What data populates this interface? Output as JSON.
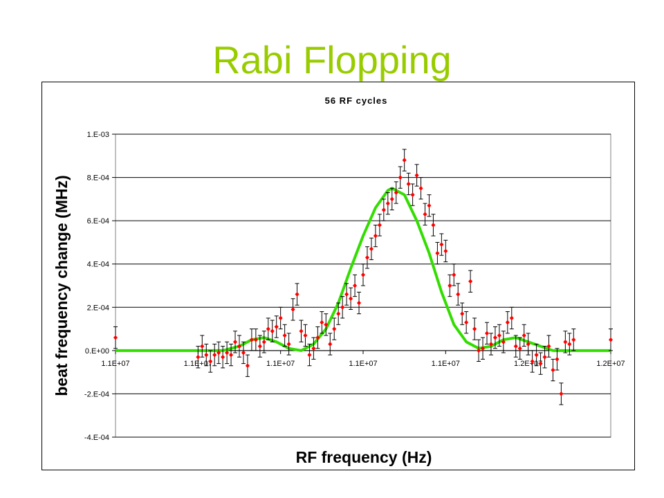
{
  "slide": {
    "title": "Rabi Flopping"
  },
  "chart_data": {
    "type": "scatter",
    "title": "56 RF cycles",
    "xlabel": "RF frequency (Hz)",
    "ylabel": "beat frequency change (MHz)",
    "xlim": [
      0,
      6
    ],
    "ylim": [
      -0.0004,
      0.001
    ],
    "grid": true,
    "legend": "none",
    "x_tick_labels": [
      "1.1E+07",
      "1.1E+07",
      "1.1E+07",
      "1.1E+07",
      "1.1E+07",
      "1.2E+07",
      "1.2E+07"
    ],
    "y_ticks": [
      -0.0004,
      -0.0002,
      0.0,
      0.0002,
      0.0004,
      0.0006,
      0.0008,
      0.001
    ],
    "y_tick_labels": [
      "-4.E-04",
      "-2.E-04",
      "0.E+00",
      "2.E-04",
      "4.E-04",
      "6.E-04",
      "8.E-04",
      "1.E-03"
    ],
    "colors": {
      "points": "#ff0000",
      "fit": "#33dd00",
      "grid": "#000000",
      "title": "#99cc00"
    },
    "series": [
      {
        "type": "scatter_errorbar",
        "error": 5e-05,
        "points": [
          [
            0.0,
            6e-05
          ],
          [
            1.0,
            -3e-05
          ],
          [
            1.05,
            2e-05
          ],
          [
            1.1,
            -2e-05
          ],
          [
            1.15,
            -5e-05
          ],
          [
            1.2,
            -2e-05
          ],
          [
            1.25,
            -1e-05
          ],
          [
            1.3,
            -3e-05
          ],
          [
            1.35,
            -1e-05
          ],
          [
            1.4,
            -2e-05
          ],
          [
            1.45,
            4e-05
          ],
          [
            1.5,
            2e-05
          ],
          [
            1.55,
            -1e-05
          ],
          [
            1.6,
            -7e-05
          ],
          [
            1.65,
            5e-05
          ],
          [
            1.7,
            5e-05
          ],
          [
            1.75,
            2e-05
          ],
          [
            1.8,
            4e-05
          ],
          [
            1.85,
            0.0001
          ],
          [
            1.9,
            9e-05
          ],
          [
            1.95,
            0.00011
          ],
          [
            2.0,
            0.00015
          ],
          [
            2.05,
            7e-05
          ],
          [
            2.1,
            3e-05
          ],
          [
            2.15,
            0.00019
          ],
          [
            2.2,
            0.00026
          ],
          [
            2.25,
            9e-05
          ],
          [
            2.3,
            7e-05
          ],
          [
            2.35,
            -2e-05
          ],
          [
            2.4,
            1e-05
          ],
          [
            2.45,
            6e-05
          ],
          [
            2.5,
            0.00013
          ],
          [
            2.55,
            0.00012
          ],
          [
            2.6,
            3e-05
          ],
          [
            2.65,
            0.0001
          ],
          [
            2.7,
            0.00017
          ],
          [
            2.75,
            0.0002
          ],
          [
            2.8,
            0.00026
          ],
          [
            2.85,
            0.00024
          ],
          [
            2.9,
            0.0003
          ],
          [
            2.95,
            0.00022
          ],
          [
            3.0,
            0.00035
          ],
          [
            3.05,
            0.00043
          ],
          [
            3.1,
            0.00047
          ],
          [
            3.15,
            0.00053
          ],
          [
            3.2,
            0.00058
          ],
          [
            3.25,
            0.00065
          ],
          [
            3.3,
            0.00068
          ],
          [
            3.35,
            0.0007
          ],
          [
            3.4,
            0.00073
          ],
          [
            3.45,
            0.0008
          ],
          [
            3.5,
            0.00088
          ],
          [
            3.55,
            0.00077
          ],
          [
            3.6,
            0.00072
          ],
          [
            3.65,
            0.00081
          ],
          [
            3.7,
            0.00075
          ],
          [
            3.75,
            0.00063
          ],
          [
            3.8,
            0.00067
          ],
          [
            3.85,
            0.00058
          ],
          [
            3.9,
            0.00045
          ],
          [
            3.95,
            0.00049
          ],
          [
            4.0,
            0.00046
          ],
          [
            4.05,
            0.0003
          ],
          [
            4.1,
            0.00035
          ],
          [
            4.15,
            0.00026
          ],
          [
            4.2,
            0.00017
          ],
          [
            4.25,
            0.00013
          ],
          [
            4.3,
            0.00032
          ],
          [
            4.35,
            0.0001
          ],
          [
            4.4,
            0.0
          ],
          [
            4.45,
            1e-05
          ],
          [
            4.5,
            8e-05
          ],
          [
            4.55,
            3e-05
          ],
          [
            4.6,
            6e-05
          ],
          [
            4.65,
            7e-05
          ],
          [
            4.7,
            4e-05
          ],
          [
            4.75,
            0.00013
          ],
          [
            4.8,
            0.00015
          ],
          [
            4.85,
            2e-05
          ],
          [
            4.9,
            1e-05
          ],
          [
            4.95,
            7e-05
          ],
          [
            5.0,
            3e-05
          ],
          [
            5.05,
            -5e-05
          ],
          [
            5.1,
            -2e-05
          ],
          [
            5.15,
            -6e-05
          ],
          [
            5.2,
            -3e-05
          ],
          [
            5.25,
            2e-05
          ],
          [
            5.3,
            -9e-05
          ],
          [
            5.35,
            -4e-05
          ],
          [
            5.4,
            -0.0002
          ],
          [
            5.45,
            4e-05
          ],
          [
            5.5,
            3e-05
          ],
          [
            5.55,
            5e-05
          ],
          [
            6.0,
            5e-05
          ]
        ]
      },
      {
        "type": "line",
        "points": [
          [
            0.0,
            0.0
          ],
          [
            1.3,
            0.0
          ],
          [
            1.5,
            2e-05
          ],
          [
            1.65,
            5e-05
          ],
          [
            1.8,
            6e-05
          ],
          [
            1.95,
            4e-05
          ],
          [
            2.1,
            1e-05
          ],
          [
            2.25,
            0.0
          ],
          [
            2.4,
            3e-05
          ],
          [
            2.55,
            0.0001
          ],
          [
            2.7,
            0.00022
          ],
          [
            2.85,
            0.00038
          ],
          [
            3.0,
            0.00053
          ],
          [
            3.15,
            0.00066
          ],
          [
            3.3,
            0.00074
          ],
          [
            3.35,
            0.00075
          ],
          [
            3.5,
            0.00072
          ],
          [
            3.65,
            0.0006
          ],
          [
            3.8,
            0.00045
          ],
          [
            3.95,
            0.00027
          ],
          [
            4.1,
            0.00012
          ],
          [
            4.25,
            4e-05
          ],
          [
            4.4,
            1e-05
          ],
          [
            4.55,
            2e-05
          ],
          [
            4.7,
            5e-05
          ],
          [
            4.85,
            6e-05
          ],
          [
            5.0,
            4e-05
          ],
          [
            5.15,
            2e-05
          ],
          [
            5.3,
            0.0
          ],
          [
            5.5,
            0.0
          ],
          [
            6.0,
            0.0
          ]
        ]
      }
    ]
  }
}
